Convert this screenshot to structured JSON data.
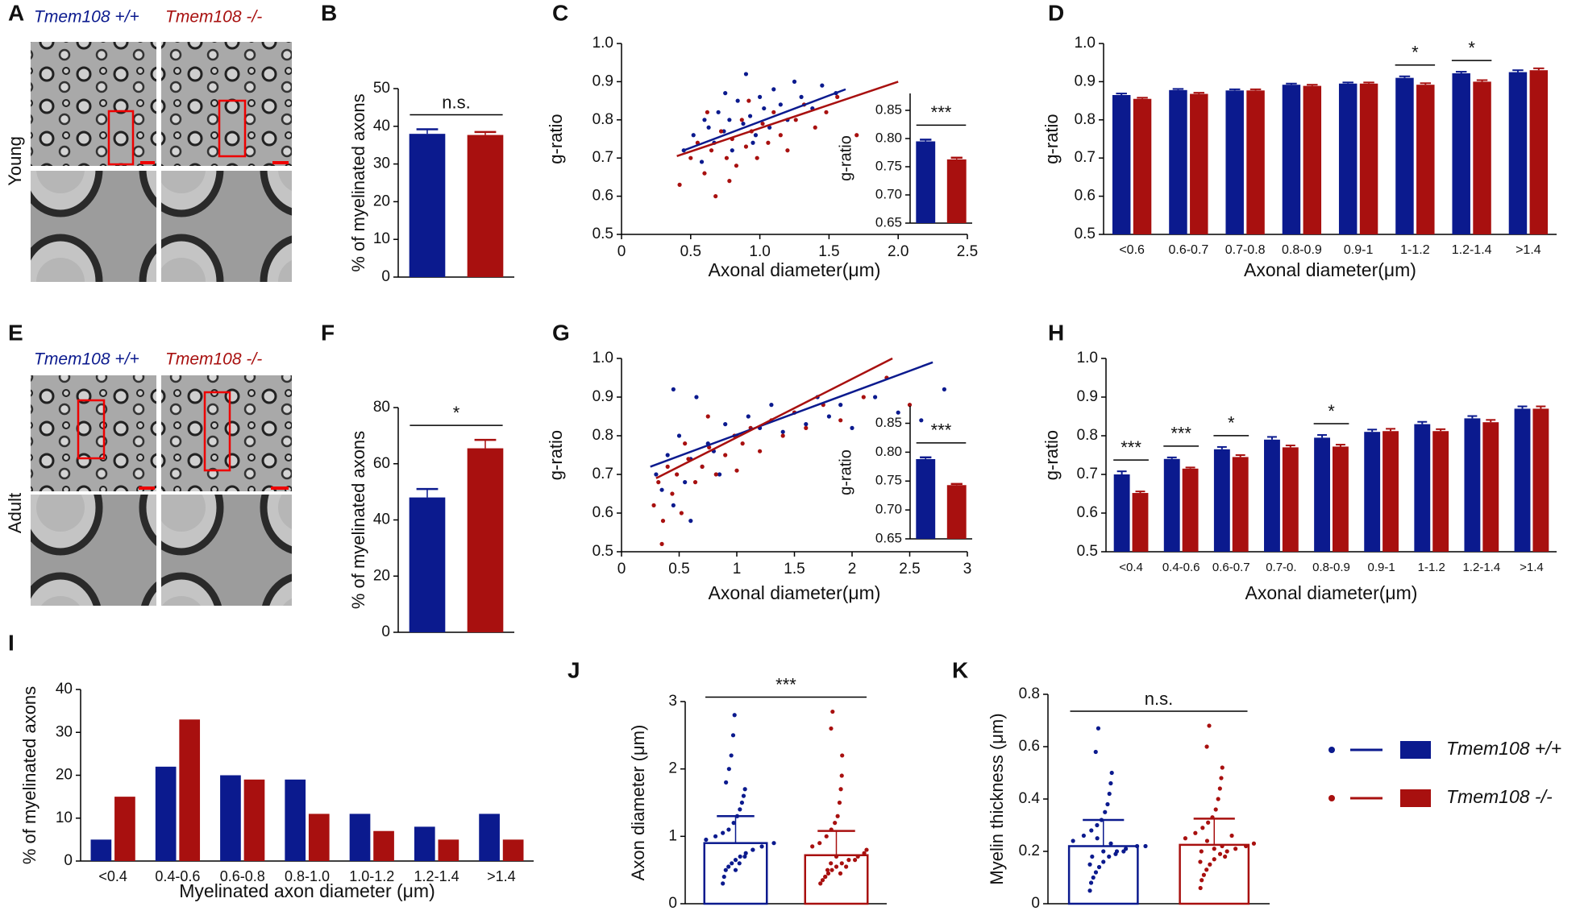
{
  "micrographs": {
    "label_A": "A",
    "label_E": "E",
    "genotypes": [
      "Tmem108 +/+",
      "Tmem108 -/-"
    ],
    "rows": [
      "Young",
      "Adult"
    ]
  },
  "legend": [
    {
      "name": "Tmem108 +/+",
      "color": "#0b1a8e"
    },
    {
      "name": "Tmem108 -/-",
      "color": "#a8100f"
    }
  ],
  "chart_data": [
    {
      "type": "bar",
      "label": "B",
      "ylabel": "% of myelinated axons",
      "values": [
        38,
        37.7
      ],
      "errors": [
        1.2,
        0.8
      ],
      "colors": [
        "#0b1a8e",
        "#a8100f"
      ],
      "ylim": [
        0,
        50
      ],
      "yticks": [
        0,
        10,
        20,
        30,
        40,
        50
      ],
      "annotation": "n.s."
    },
    {
      "type": "scatter",
      "label": "C",
      "xlabel": "Axonal diameter(μm)",
      "ylabel": "g-ratio",
      "xlim": [
        0,
        2.5
      ],
      "xticks": [
        0,
        0.5,
        {
          "value": 1,
          "label": "1.0"
        },
        1.5,
        {
          "value": 2,
          "label": "2.0"
        },
        2.5
      ],
      "ylim": [
        0.5,
        1
      ],
      "yticks": [
        0.5,
        0.6,
        0.7,
        0.8,
        0.9,
        {
          "value": 1,
          "label": "1.0"
        }
      ],
      "series": [
        {
          "color": "#0b1a8e",
          "x": [
            0.45,
            0.52,
            0.58,
            0.63,
            0.67,
            0.7,
            0.74,
            0.78,
            0.8,
            0.84,
            0.88,
            0.9,
            0.93,
            0.97,
            1.0,
            1.03,
            1.07,
            1.1,
            1.15,
            1.2,
            1.25,
            1.3,
            1.38,
            1.45,
            1.55,
            0.6,
            0.75,
            0.95
          ],
          "y": [
            0.72,
            0.76,
            0.69,
            0.78,
            0.74,
            0.82,
            0.77,
            0.8,
            0.72,
            0.85,
            0.79,
            0.92,
            0.81,
            0.76,
            0.86,
            0.83,
            0.78,
            0.88,
            0.84,
            0.8,
            0.9,
            0.86,
            0.83,
            0.89,
            0.87,
            0.8,
            0.87,
            0.74
          ],
          "fit": {
            "x": [
              0.45,
              1.62
            ],
            "y": [
              0.72,
              0.88
            ]
          }
        },
        {
          "color": "#a8100f",
          "x": [
            0.42,
            0.5,
            0.55,
            0.6,
            0.65,
            0.68,
            0.72,
            0.76,
            0.8,
            0.83,
            0.87,
            0.9,
            0.94,
            0.98,
            1.02,
            1.06,
            1.1,
            1.15,
            1.2,
            1.26,
            1.32,
            1.4,
            1.48,
            1.56,
            1.7,
            0.62,
            0.78,
            0.92
          ],
          "y": [
            0.63,
            0.7,
            0.74,
            0.66,
            0.72,
            0.6,
            0.77,
            0.7,
            0.75,
            0.68,
            0.8,
            0.73,
            0.77,
            0.7,
            0.79,
            0.74,
            0.82,
            0.76,
            0.72,
            0.8,
            0.84,
            0.78,
            0.82,
            0.86,
            0.76,
            0.82,
            0.64,
            0.85
          ],
          "fit": {
            "x": [
              0.4,
              2.0
            ],
            "y": [
              0.705,
              0.9
            ]
          }
        }
      ],
      "inset": {
        "type": "bar",
        "ylabel": "g-ratio",
        "values": [
          0.795,
          0.763
        ],
        "errors": [
          0.003,
          0.003
        ],
        "colors": [
          "#0b1a8e",
          "#a8100f"
        ],
        "ylim": [
          0.65,
          0.88
        ],
        "yticks": [
          0.65,
          {
            "value": 0.7,
            "label": "0.70"
          },
          0.75,
          {
            "value": 0.8,
            "label": "0.80"
          },
          0.85
        ],
        "annotation": "***"
      }
    },
    {
      "type": "grouped-bar",
      "label": "D",
      "xlabel": "Axonal diameter(μm)",
      "ylabel": "g-ratio",
      "categories": [
        "<0.6",
        "0.6-0.7",
        "0.7-0.8",
        "0.8-0.9",
        "0.9-1",
        "1-1.2",
        "1.2-1.4",
        ">1.4"
      ],
      "series": [
        {
          "color": "#0b1a8e",
          "values": [
            0.865,
            0.878,
            0.877,
            0.892,
            0.895,
            0.91,
            0.922,
            0.925
          ],
          "errors": [
            0.004,
            0.003,
            0.003,
            0.003,
            0.003,
            0.004,
            0.004,
            0.005
          ]
        },
        {
          "color": "#a8100f",
          "values": [
            0.855,
            0.868,
            0.877,
            0.889,
            0.895,
            0.892,
            0.9,
            0.93
          ],
          "errors": [
            0.003,
            0.003,
            0.003,
            0.003,
            0.003,
            0.004,
            0.004,
            0.005
          ]
        }
      ],
      "annotations": [
        null,
        null,
        null,
        null,
        null,
        "*",
        "*",
        null
      ],
      "ylim": [
        0.5,
        1
      ],
      "yticks": [
        0.5,
        0.6,
        0.7,
        0.8,
        0.9,
        {
          "value": 1,
          "label": "1.0"
        }
      ]
    },
    {
      "type": "bar",
      "label": "F",
      "ylabel": "% of myelinated axons",
      "values": [
        48,
        65.5
      ],
      "errors": [
        3,
        3
      ],
      "colors": [
        "#0b1a8e",
        "#a8100f"
      ],
      "ylim": [
        0,
        80
      ],
      "yticks": [
        0,
        20,
        40,
        60,
        80
      ],
      "annotation": "*"
    },
    {
      "type": "scatter",
      "label": "G",
      "xlabel": "Axonal diameter(μm)",
      "ylabel": "g-ratio",
      "xlim": [
        0,
        3
      ],
      "xticks": [
        0,
        0.5,
        1,
        1.5,
        2,
        2.5,
        3
      ],
      "ylim": [
        0.5,
        1
      ],
      "yticks": [
        0.5,
        0.6,
        0.7,
        0.8,
        0.9,
        {
          "value": 1,
          "label": "1.0"
        }
      ],
      "series": [
        {
          "color": "#0b1a8e",
          "x": [
            0.3,
            0.35,
            0.4,
            0.45,
            0.5,
            0.55,
            0.6,
            0.65,
            0.7,
            0.75,
            0.8,
            0.9,
            1.0,
            1.1,
            1.2,
            1.3,
            1.4,
            1.5,
            1.6,
            1.7,
            1.8,
            1.9,
            2.0,
            2.2,
            2.4,
            2.6,
            2.8,
            0.45,
            0.6,
            0.85
          ],
          "y": [
            0.7,
            0.66,
            0.75,
            0.62,
            0.8,
            0.68,
            0.74,
            0.9,
            0.72,
            0.78,
            0.76,
            0.83,
            0.8,
            0.85,
            0.82,
            0.88,
            0.81,
            0.86,
            0.83,
            0.9,
            0.85,
            0.88,
            0.82,
            0.9,
            0.86,
            0.84,
            0.92,
            0.92,
            0.58,
            0.7
          ],
          "fit": {
            "x": [
              0.25,
              2.7
            ],
            "y": [
              0.72,
              0.99
            ]
          }
        },
        {
          "color": "#a8100f",
          "x": [
            0.28,
            0.32,
            0.36,
            0.4,
            0.44,
            0.48,
            0.52,
            0.58,
            0.64,
            0.7,
            0.76,
            0.82,
            0.9,
            0.98,
            1.05,
            1.12,
            1.2,
            1.3,
            1.4,
            1.5,
            1.6,
            1.75,
            1.9,
            2.1,
            2.3,
            2.5,
            0.35,
            0.55,
            0.75,
            1.0
          ],
          "y": [
            0.62,
            0.68,
            0.58,
            0.72,
            0.65,
            0.7,
            0.6,
            0.74,
            0.68,
            0.72,
            0.77,
            0.7,
            0.75,
            0.8,
            0.78,
            0.82,
            0.76,
            0.84,
            0.8,
            0.86,
            0.82,
            0.88,
            0.84,
            0.9,
            0.95,
            0.88,
            0.52,
            0.78,
            0.85,
            0.71
          ],
          "fit": {
            "x": [
              0.3,
              2.35
            ],
            "y": [
              0.69,
              1.0
            ]
          }
        }
      ],
      "inset": {
        "type": "bar",
        "ylabel": "g-ratio",
        "values": [
          0.788,
          0.743
        ],
        "errors": [
          0.003,
          0.002
        ],
        "colors": [
          "#0b1a8e",
          "#a8100f"
        ],
        "ylim": [
          0.65,
          0.88
        ],
        "yticks": [
          0.65,
          {
            "value": 0.7,
            "label": "0.70"
          },
          0.75,
          {
            "value": 0.8,
            "label": "0.80"
          },
          0.85
        ],
        "annotation": "***"
      }
    },
    {
      "type": "grouped-bar",
      "label": "H",
      "xlabel": "Axonal diameter(μm)",
      "ylabel": "g-ratio",
      "categories": [
        "<0.4",
        "0.4-0.6",
        "0.6-0.7",
        "0.7-0.",
        "0.8-0.9",
        "0.9-1",
        "1-1.2",
        "1.2-1.4",
        ">1.4"
      ],
      "series": [
        {
          "color": "#0b1a8e",
          "values": [
            0.7,
            0.74,
            0.765,
            0.79,
            0.795,
            0.81,
            0.83,
            0.845,
            0.87
          ],
          "errors": [
            0.008,
            0.004,
            0.006,
            0.007,
            0.007,
            0.006,
            0.006,
            0.006,
            0.006
          ]
        },
        {
          "color": "#a8100f",
          "values": [
            0.652,
            0.715,
            0.745,
            0.77,
            0.772,
            0.812,
            0.812,
            0.835,
            0.87
          ],
          "errors": [
            0.004,
            0.003,
            0.005,
            0.005,
            0.005,
            0.006,
            0.005,
            0.006,
            0.006
          ]
        }
      ],
      "annotations": [
        "***",
        "***",
        "*",
        null,
        "*",
        null,
        null,
        null,
        null
      ],
      "ylim": [
        0.5,
        1
      ],
      "yticks": [
        0.5,
        0.6,
        0.7,
        0.8,
        0.9,
        {
          "value": 1,
          "label": "1.0"
        }
      ]
    },
    {
      "type": "grouped-bar",
      "label": "I",
      "xlabel": "Myelinated axon diameter (μm)",
      "ylabel": "% of myelinated axons",
      "categories": [
        "<0.4",
        "0.4-0.6",
        "0.6-0.8",
        "0.8-1.0",
        "1.0-1.2",
        "1.2-1.4",
        ">1.4"
      ],
      "series": [
        {
          "color": "#0b1a8e",
          "values": [
            5,
            22,
            20,
            19,
            11,
            8,
            11
          ]
        },
        {
          "color": "#a8100f",
          "values": [
            15,
            33,
            19,
            11,
            7,
            5,
            5
          ]
        }
      ],
      "ylim": [
        0,
        40
      ],
      "yticks": [
        0,
        10,
        20,
        30,
        40
      ]
    },
    {
      "type": "bar",
      "label": "J",
      "ylabel": "Axon diameter (μm)",
      "outline": true,
      "values": [
        0.9,
        0.72
      ],
      "errors": [
        0.4,
        0.36
      ],
      "colors": [
        "#0b1a8e",
        "#a8100f"
      ],
      "ylim": [
        0,
        3
      ],
      "yticks": [
        0,
        1,
        2,
        3
      ],
      "annotation": "***",
      "points": [
        [
          0.3,
          0.4,
          0.5,
          0.55,
          0.6,
          0.65,
          0.7,
          0.75,
          0.8,
          0.85,
          0.9,
          0.95,
          1.0,
          1.05,
          1.1,
          1.2,
          1.3,
          1.4,
          1.5,
          1.6,
          1.7,
          1.8,
          2.0,
          2.2,
          2.5,
          2.8,
          0.5,
          0.6,
          0.7,
          0.8
        ],
        [
          0.3,
          0.35,
          0.4,
          0.45,
          0.5,
          0.55,
          0.6,
          0.65,
          0.7,
          0.75,
          0.8,
          0.85,
          0.9,
          1.0,
          1.1,
          1.2,
          1.3,
          1.5,
          1.7,
          1.9,
          2.2,
          2.6,
          2.85,
          0.4,
          0.5,
          0.6,
          0.7,
          0.45,
          0.55,
          0.65
        ]
      ]
    },
    {
      "type": "bar",
      "label": "K",
      "ylabel": "Myelin thickness (μm)",
      "outline": true,
      "values": [
        0.22,
        0.225
      ],
      "errors": [
        0.1,
        0.1
      ],
      "colors": [
        "#0b1a8e",
        "#a8100f"
      ],
      "ylim": [
        0,
        0.8
      ],
      "yticks": [
        0,
        0.2,
        0.4,
        0.6,
        0.8
      ],
      "annotation": "n.s.",
      "points": [
        [
          0.05,
          0.08,
          0.1,
          0.12,
          0.14,
          0.16,
          0.18,
          0.2,
          0.2,
          0.22,
          0.22,
          0.24,
          0.26,
          0.28,
          0.3,
          0.32,
          0.35,
          0.38,
          0.42,
          0.46,
          0.5,
          0.58,
          0.67,
          0.15,
          0.18,
          0.25,
          0.2,
          0.23,
          0.19,
          0.21
        ],
        [
          0.06,
          0.09,
          0.11,
          0.13,
          0.15,
          0.17,
          0.19,
          0.2,
          0.21,
          0.22,
          0.23,
          0.25,
          0.27,
          0.29,
          0.31,
          0.33,
          0.36,
          0.4,
          0.44,
          0.48,
          0.52,
          0.6,
          0.68,
          0.16,
          0.2,
          0.24,
          0.21,
          0.22,
          0.18,
          0.26
        ]
      ]
    }
  ]
}
